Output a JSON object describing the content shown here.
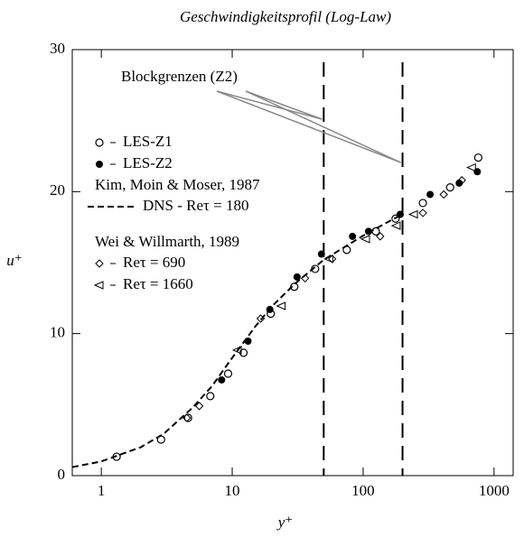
{
  "chart_data": {
    "type": "scatter",
    "title": "Geschwindigkeitsprofil (Log-Law)",
    "x_label": "y⁺",
    "y_label": "u⁺",
    "xscale": "log",
    "xlim": [
      0.6,
      1400
    ],
    "ylim": [
      0,
      30
    ],
    "xticks": [
      1,
      10,
      100,
      1000
    ],
    "yticks": [
      0,
      10,
      20,
      30
    ],
    "vlines": [
      50,
      200
    ],
    "annotations": [
      "Blockgrenzen (Z2)",
      "Kim, Moin & Moser, 1987",
      "Wei & Willmarth, 1989"
    ],
    "series": [
      {
        "name": "LES-Z1",
        "marker": "open-circle",
        "color": "#000000",
        "x": [
          1.31,
          2.86,
          4.6,
          6.8,
          9.3,
          12.2,
          19.7,
          29.8,
          43,
          75,
          125,
          177,
          286,
          462,
          758
        ],
        "values": [
          1.33,
          2.54,
          4.07,
          5.6,
          7.18,
          8.65,
          11.4,
          13.3,
          14.56,
          15.9,
          17.2,
          18.1,
          19.2,
          20.3,
          22.4
        ]
      },
      {
        "name": "LES-Z2",
        "marker": "filled-circle",
        "color": "#000000",
        "x": [
          8.3,
          13.2,
          19.4,
          31.3,
          48,
          83,
          110,
          192,
          325,
          542,
          745
        ],
        "values": [
          6.74,
          9.47,
          11.7,
          13.99,
          15.6,
          16.85,
          17.2,
          18.4,
          19.8,
          20.6,
          21.4
        ]
      },
      {
        "name": "DNS - Reτ = 180",
        "marker": "dashed-line",
        "color": "#000000",
        "x": [
          0.6,
          1,
          2,
          3,
          5,
          7,
          10,
          15,
          20,
          30,
          50,
          100,
          150,
          190
        ],
        "values": [
          0.6,
          1,
          2,
          2.95,
          4.8,
          6.3,
          8.3,
          10.5,
          11.9,
          13.5,
          15.2,
          16.9,
          17.8,
          18.3
        ]
      },
      {
        "name": "Reτ = 690",
        "marker": "diamond",
        "color": "#000000",
        "x": [
          4.5,
          5.6,
          16.5,
          36,
          58,
          135,
          286,
          413,
          568
        ],
        "values": [
          4.07,
          4.9,
          11.06,
          13.9,
          15.26,
          16.85,
          18.5,
          19.8,
          20.8
        ]
      },
      {
        "name": "Reτ = 1660",
        "marker": "left-triangle",
        "color": "#000000",
        "x": [
          11,
          23.8,
          55,
          105,
          180,
          244,
          677
        ],
        "values": [
          8.84,
          11.95,
          15.26,
          16.66,
          17.6,
          18.4,
          21.7
        ]
      }
    ]
  }
}
